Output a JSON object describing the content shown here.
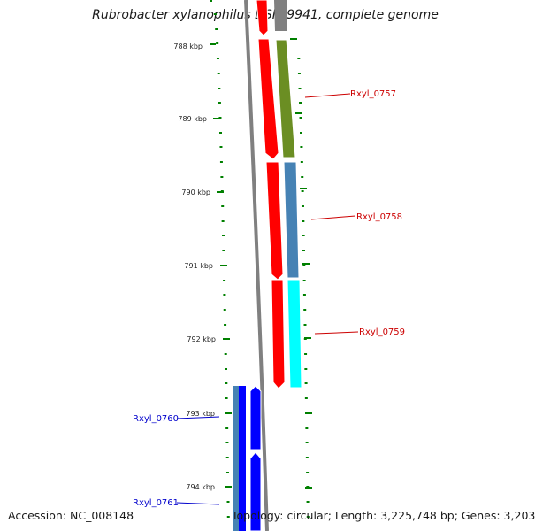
{
  "title": "Rubrobacter xylanophilus DSM 9941, complete genome",
  "footer": {
    "accession": "Accession: NC_008148",
    "summary": "Topology: circular; Length: 3,225,748 bp; Genes: 3,203"
  },
  "colors": {
    "cds_red": "#ff0000",
    "backbone": "#808080",
    "ticks": "#008000",
    "label_forward": "#cc0000",
    "label_reverse": "#0000cc",
    "olive": "#6b8e23",
    "steelblue": "#4682b4",
    "cyan": "#00ffff",
    "blue": "#0000ff"
  },
  "scale": {
    "unit": "kbp",
    "ticks": [
      {
        "label": "788 kbp"
      },
      {
        "label": "789 kbp"
      },
      {
        "label": "790 kbp"
      },
      {
        "label": "791 kbp"
      },
      {
        "label": "792 kbp"
      },
      {
        "label": "793 kbp"
      },
      {
        "label": "794 kbp"
      }
    ]
  },
  "genes": [
    {
      "label": "Rxyl_0757",
      "strand": "forward"
    },
    {
      "label": "Rxyl_0758",
      "strand": "forward"
    },
    {
      "label": "Rxyl_0759",
      "strand": "forward"
    },
    {
      "label": "Rxyl_0760",
      "strand": "reverse"
    },
    {
      "label": "Rxyl_0761",
      "strand": "reverse"
    }
  ]
}
